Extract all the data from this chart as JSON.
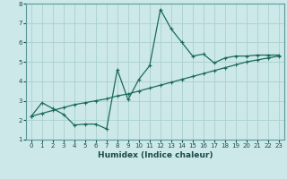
{
  "xlabel": "Humidex (Indice chaleur)",
  "ylabel": "",
  "bg_color": "#cce8e8",
  "grid_color": "#aad0d0",
  "line_color": "#1a6b5a",
  "xlim": [
    -0.5,
    23.5
  ],
  "ylim": [
    1,
    8
  ],
  "xticks": [
    0,
    1,
    2,
    3,
    4,
    5,
    6,
    7,
    8,
    9,
    10,
    11,
    12,
    13,
    14,
    15,
    16,
    17,
    18,
    19,
    20,
    21,
    22,
    23
  ],
  "yticks": [
    1,
    2,
    3,
    4,
    5,
    6,
    7,
    8
  ],
  "line1_x": [
    0,
    1,
    2,
    3,
    4,
    5,
    6,
    7,
    8,
    9,
    10,
    11,
    12,
    13,
    14,
    15,
    16,
    17,
    18,
    19,
    20,
    21,
    22,
    23
  ],
  "line1_y": [
    2.2,
    2.9,
    2.6,
    2.3,
    1.75,
    1.8,
    1.8,
    1.55,
    4.6,
    3.05,
    4.1,
    4.8,
    7.7,
    6.7,
    6.0,
    5.3,
    5.4,
    4.95,
    5.2,
    5.3,
    5.3,
    5.35,
    5.35,
    5.35
  ],
  "line2_x": [
    0,
    1,
    2,
    3,
    4,
    5,
    6,
    7,
    8,
    9,
    10,
    11,
    12,
    13,
    14,
    15,
    16,
    17,
    18,
    19,
    20,
    21,
    22,
    23
  ],
  "line2_y": [
    2.2,
    2.35,
    2.5,
    2.65,
    2.8,
    2.9,
    3.0,
    3.1,
    3.25,
    3.35,
    3.5,
    3.65,
    3.8,
    3.95,
    4.1,
    4.25,
    4.4,
    4.55,
    4.7,
    4.85,
    5.0,
    5.1,
    5.2,
    5.3
  ],
  "tick_fontsize": 5.0,
  "xlabel_fontsize": 6.5
}
